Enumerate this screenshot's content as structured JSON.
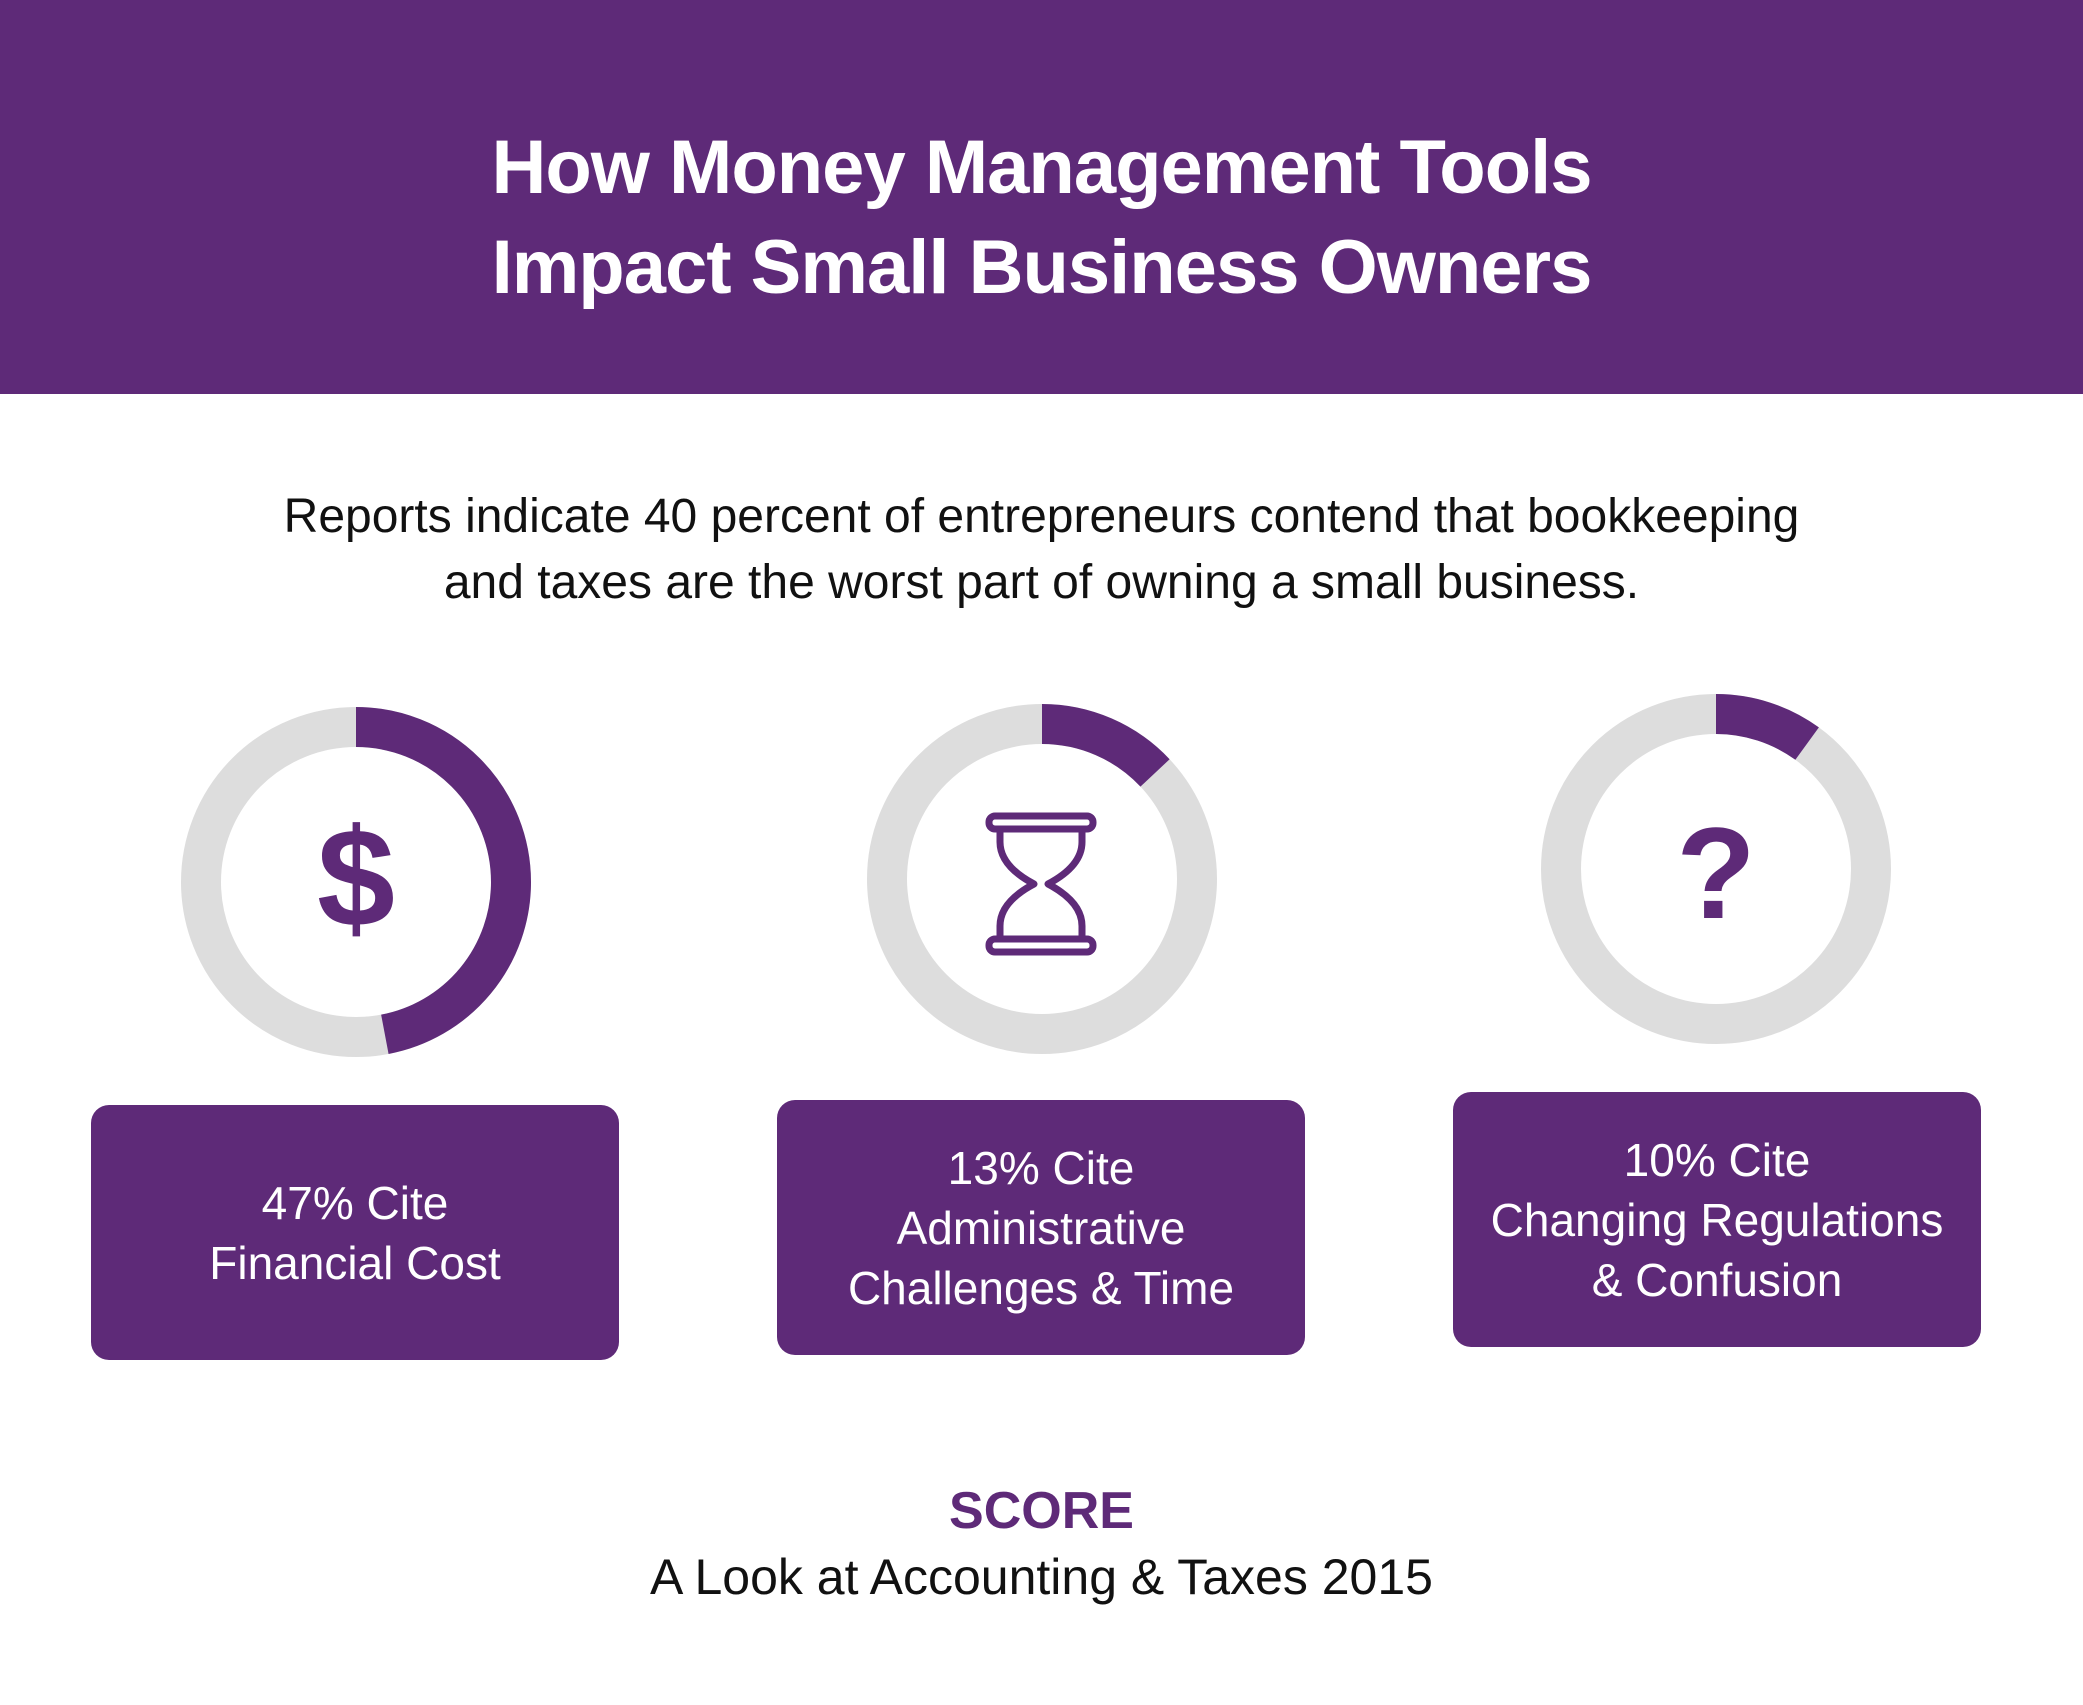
{
  "header": {
    "title_line1": "How Money Management Tools",
    "title_line2": "Impact Small Business Owners"
  },
  "intro": {
    "line1": "Reports indicate 40 percent of entrepreneurs contend that bookkeeping",
    "line2": "and taxes are the worst part of owning a small business."
  },
  "colors": {
    "brand": "#5e2a78",
    "track": "#dddddd",
    "text": "#111111"
  },
  "chart_data": {
    "type": "pie",
    "categories": [
      "Financial Cost",
      "Administrative Challenges & Time",
      "Changing Regulations & Confusion"
    ],
    "values": [
      47,
      13,
      10
    ],
    "unit": "%",
    "icons": [
      "dollar-icon",
      "hourglass-icon",
      "question-icon"
    ]
  },
  "stats": [
    {
      "line1": "47% Cite",
      "line2": "Financial Cost",
      "line3": ""
    },
    {
      "line1": "13% Cite",
      "line2": "Administrative",
      "line3": "Challenges & Time"
    },
    {
      "line1": "10% Cite",
      "line2": "Changing Regulations",
      "line3": "& Confusion"
    }
  ],
  "icons": {
    "dollar": "$",
    "question": "?"
  },
  "source": {
    "org": "SCORE",
    "title": "A Look at Accounting & Taxes 2015"
  }
}
